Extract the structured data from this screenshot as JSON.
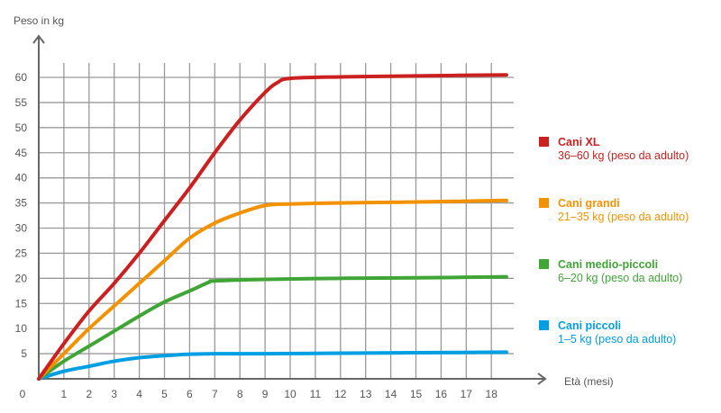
{
  "chart_data": {
    "type": "line",
    "ylabel": "Peso in kg",
    "xlabel": "Età (mesi)",
    "xlim": [
      0,
      19
    ],
    "ylim": [
      0,
      63
    ],
    "grid": true,
    "legend_position": "right",
    "x_ticks": [
      1,
      2,
      3,
      4,
      5,
      6,
      7,
      8,
      9,
      10,
      11,
      12,
      13,
      14,
      15,
      16,
      17,
      18
    ],
    "y_ticks": [
      0,
      5,
      10,
      15,
      20,
      25,
      30,
      35,
      40,
      45,
      50,
      55,
      60
    ],
    "series": [
      {
        "name": "Cani XL",
        "subtitle": "36–60 kg (peso da adulto)",
        "color": "#cc1f1f",
        "x": [
          0,
          1,
          2,
          3,
          4,
          5,
          6,
          7,
          8,
          9,
          9.5,
          10,
          12,
          15,
          18.6
        ],
        "y": [
          0,
          7,
          13.5,
          19,
          25,
          31.5,
          38,
          45,
          51.5,
          57,
          59,
          59.8,
          60.1,
          60.3,
          60.5
        ]
      },
      {
        "name": "Cani grandi",
        "subtitle": "21–35 kg (peso da adulto)",
        "color": "#f39200",
        "x": [
          0,
          1,
          2,
          3,
          4,
          5,
          6,
          7,
          8,
          9,
          10,
          12,
          15,
          18.6
        ],
        "y": [
          0,
          5,
          10,
          14.5,
          19,
          23.5,
          28,
          31,
          33,
          34.5,
          34.8,
          35,
          35.2,
          35.5
        ]
      },
      {
        "name": "Cani medio-piccoli",
        "subtitle": "6–20 kg (peso da adulto)",
        "color": "#3fa535",
        "x": [
          0,
          1,
          2,
          3,
          4,
          5,
          6,
          6.8,
          7,
          9,
          12,
          15,
          18.6
        ],
        "y": [
          0,
          3.5,
          6.5,
          9.5,
          12.5,
          15.3,
          17.5,
          19.3,
          19.5,
          19.8,
          20,
          20.1,
          20.3
        ]
      },
      {
        "name": "Cani piccoli",
        "subtitle": "1–5 kg (peso da adulto)",
        "color": "#009fe3",
        "x": [
          0,
          1,
          2,
          3,
          4,
          5,
          6,
          7,
          9,
          12,
          15,
          18.6
        ],
        "y": [
          0,
          1.5,
          2.5,
          3.5,
          4.2,
          4.6,
          4.9,
          5,
          5,
          5.1,
          5.2,
          5.3
        ]
      }
    ]
  }
}
